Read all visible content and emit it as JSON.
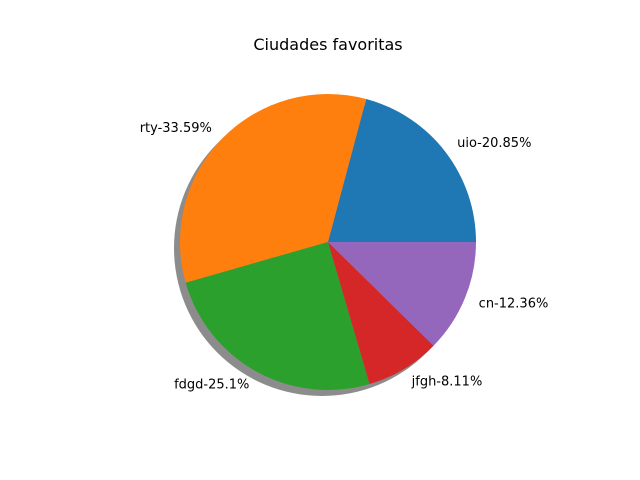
{
  "chart_data": {
    "type": "pie",
    "title": "Ciudades favoritas",
    "shadow": true,
    "start_angle_deg": 0,
    "direction": "counterclockwise",
    "slices": [
      {
        "label": "uio-20.85%",
        "value": 20.85,
        "color": "#1f77b4"
      },
      {
        "label": "rty-33.59%",
        "value": 33.59,
        "color": "#ff7f0e"
      },
      {
        "label": "fdgd-25.1%",
        "value": 25.1,
        "color": "#2ca02c"
      },
      {
        "label": "jfgh-8.11%",
        "value": 8.11,
        "color": "#d62728"
      },
      {
        "label": "cn-12.36%",
        "value": 12.36,
        "color": "#9467bd"
      }
    ]
  }
}
